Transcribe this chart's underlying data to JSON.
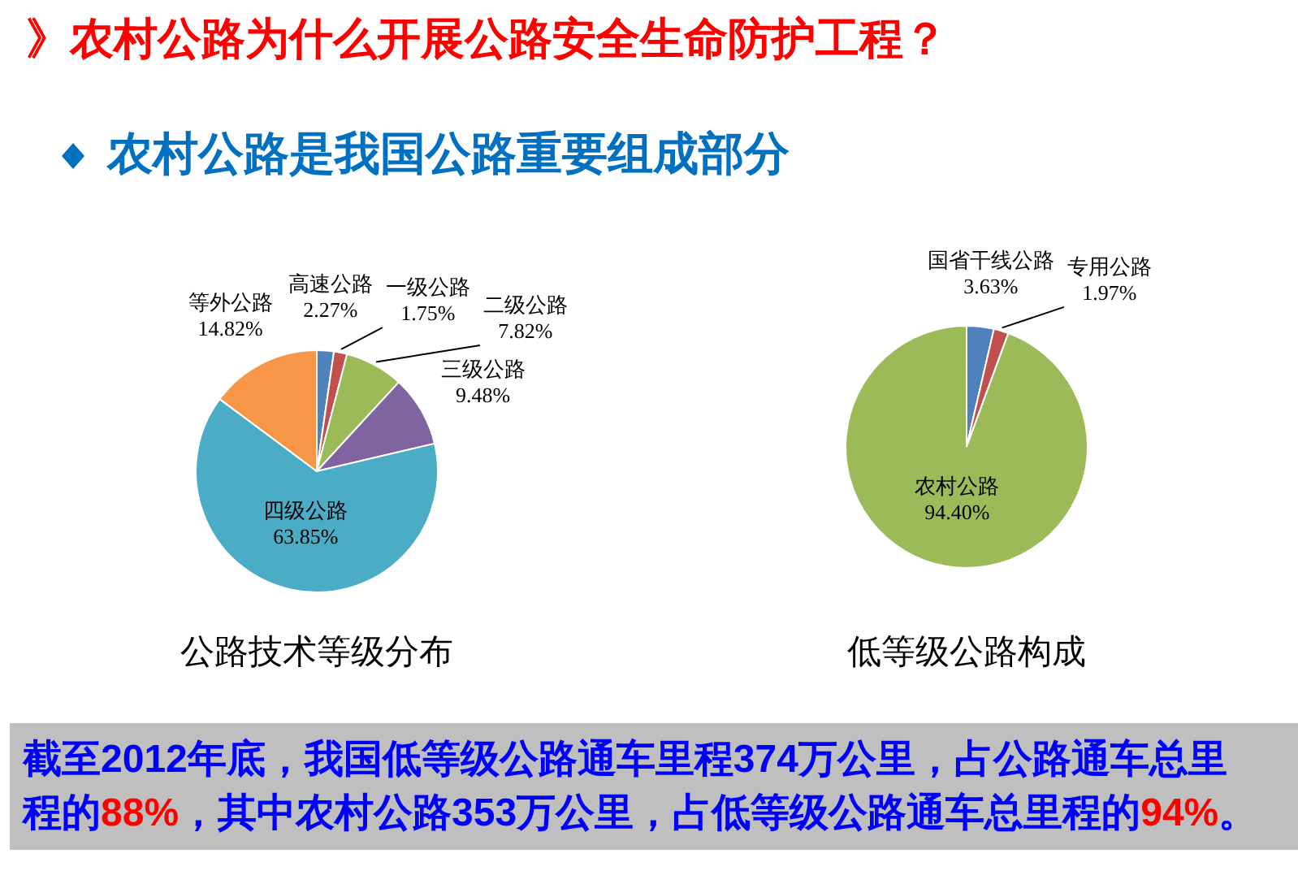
{
  "chart_data": [
    {
      "type": "other",
      "title": "》农村公路为什么开展公路安全生命防护工程？",
      "subtitle": "农村公路是我国公路重要组成部分"
    },
    {
      "type": "pie",
      "title": "公路技术等级分布",
      "categories": [
        "高速公路",
        "一级公路",
        "二级公路",
        "三级公路",
        "四级公路",
        "等外公路"
      ],
      "values": [
        2.27,
        1.75,
        7.82,
        9.48,
        63.85,
        14.82
      ],
      "value_labels": [
        "2.27%",
        "1.75%",
        "7.82%",
        "9.48%",
        "63.85%",
        "14.82%"
      ],
      "colors": [
        "#4f81bd",
        "#c0504d",
        "#9bbb59",
        "#8064a2",
        "#4bacc6",
        "#f79646"
      ]
    },
    {
      "type": "pie",
      "title": "低等级公路构成",
      "categories": [
        "国省干线公路",
        "专用公路",
        "农村公路"
      ],
      "values": [
        3.63,
        1.97,
        94.4
      ],
      "value_labels": [
        "3.63%",
        "1.97%",
        "94.40%"
      ],
      "colors": [
        "#4f81bd",
        "#c0504d",
        "#9bbb59"
      ]
    },
    {
      "type": "other",
      "annotations": [
        "截至2012年底，我国低等级公路通车里程374万公里，占公路通车总里程的88%，其中农村公路353万公里，占低等级公路通车总里程的94%。"
      ]
    }
  ]
}
